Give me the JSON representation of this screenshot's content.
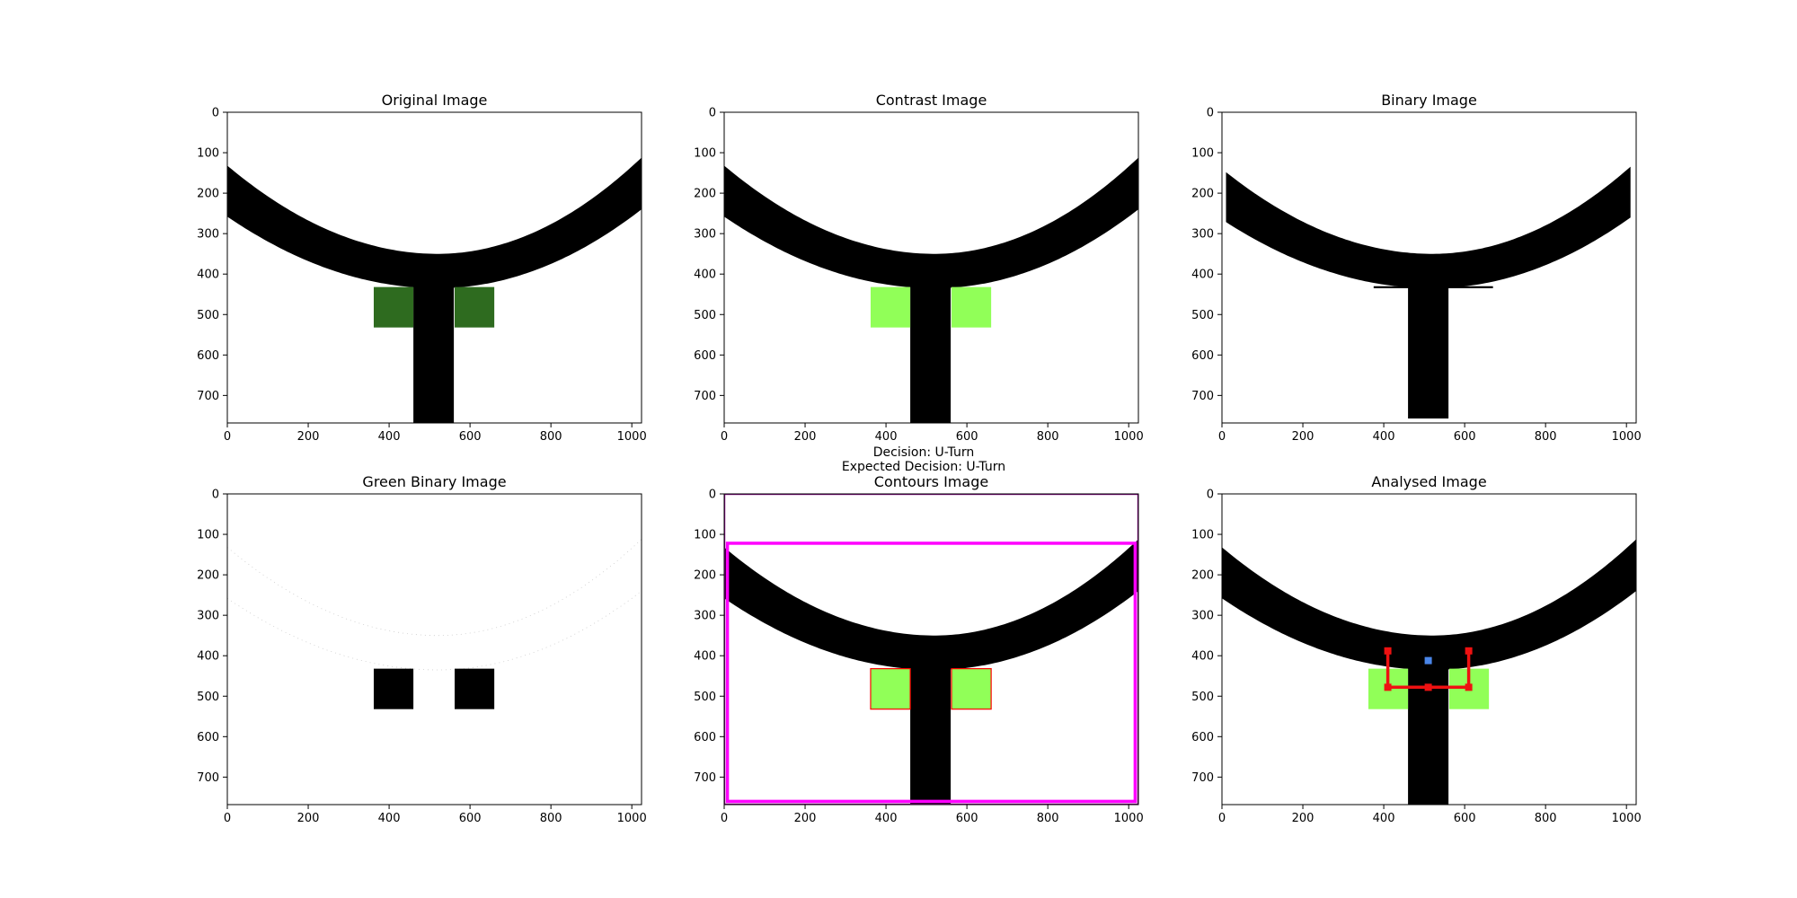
{
  "figure": {
    "decision_text": "Decision: U-Turn",
    "expected_text": "Expected Decision: U-Turn"
  },
  "chart_data": [
    {
      "type": "image",
      "title": "Original Image",
      "xlim": [
        0,
        1024
      ],
      "ylim": [
        768,
        0
      ],
      "xticks": [
        0,
        200,
        400,
        600,
        800,
        1000
      ],
      "yticks": [
        0,
        100,
        200,
        300,
        400,
        500,
        600,
        700
      ],
      "scene": {
        "curve": true,
        "curve_mode": "full",
        "stem": true,
        "stem_end": 768,
        "green_squares": true,
        "green_color": "#2e6b1f",
        "contours": false,
        "analysis": false
      }
    },
    {
      "type": "image",
      "title": "Contrast Image",
      "xlim": [
        0,
        1024
      ],
      "ylim": [
        768,
        0
      ],
      "xticks": [
        0,
        200,
        400,
        600,
        800,
        1000
      ],
      "yticks": [
        0,
        100,
        200,
        300,
        400,
        500,
        600,
        700
      ],
      "scene": {
        "curve": true,
        "curve_mode": "full",
        "stem": true,
        "stem_end": 768,
        "green_squares": true,
        "green_color": "#91ff58",
        "contours": false,
        "analysis": false
      }
    },
    {
      "type": "image",
      "title": "Binary Image",
      "xlim": [
        0,
        1024
      ],
      "ylim": [
        768,
        0
      ],
      "xticks": [
        0,
        200,
        400,
        600,
        800,
        1000
      ],
      "yticks": [
        0,
        100,
        200,
        300,
        400,
        500,
        600,
        700
      ],
      "scene": {
        "curve": true,
        "curve_mode": "binary",
        "stem": true,
        "stem_end": 757,
        "green_squares": false,
        "contours": false,
        "analysis": false
      }
    },
    {
      "type": "image",
      "title": "Green Binary Image",
      "xlim": [
        0,
        1024
      ],
      "ylim": [
        768,
        0
      ],
      "xticks": [
        0,
        200,
        400,
        600,
        800,
        1000
      ],
      "yticks": [
        0,
        100,
        200,
        300,
        400,
        500,
        600,
        700
      ],
      "scene": {
        "curve": false,
        "faint_curve": true,
        "stem": false,
        "green_squares": true,
        "green_color": "#000000",
        "contours": false,
        "analysis": false
      }
    },
    {
      "type": "image",
      "title": "Contours Image",
      "xlim": [
        0,
        1024
      ],
      "ylim": [
        768,
        0
      ],
      "xticks": [
        0,
        200,
        400,
        600,
        800,
        1000
      ],
      "yticks": [
        0,
        100,
        200,
        300,
        400,
        500,
        600,
        700
      ],
      "scene": {
        "curve": true,
        "curve_mode": "full",
        "stem": true,
        "stem_end": 768,
        "green_squares": true,
        "green_color": "#91ff58",
        "contours": true,
        "analysis": false
      }
    },
    {
      "type": "image",
      "title": "Analysed Image",
      "xlim": [
        0,
        1024
      ],
      "ylim": [
        768,
        0
      ],
      "xticks": [
        0,
        200,
        400,
        600,
        800,
        1000
      ],
      "yticks": [
        0,
        100,
        200,
        300,
        400,
        500,
        600,
        700
      ],
      "scene": {
        "curve": true,
        "curve_mode": "full",
        "stem": true,
        "stem_end": 768,
        "green_squares": true,
        "green_color": "#91ff58",
        "contours": false,
        "analysis": true
      },
      "analysis": {
        "path": [
          [
            410,
            388
          ],
          [
            410,
            478
          ],
          [
            510,
            478
          ],
          [
            610,
            478
          ],
          [
            610,
            388
          ]
        ],
        "center": [
          510,
          412
        ],
        "path_color": "#ee1111",
        "center_color": "#4a86e8"
      }
    }
  ]
}
